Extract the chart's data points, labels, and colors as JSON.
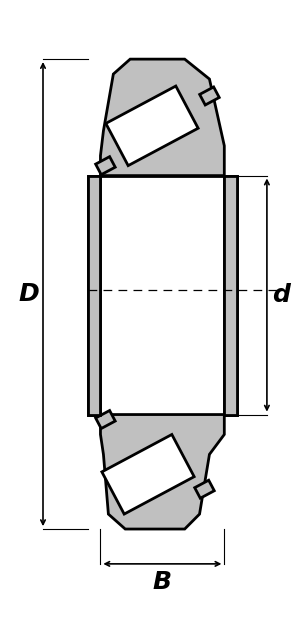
{
  "bg_color": "#ffffff",
  "line_color": "#000000",
  "fill_color": "#c0c0c0",
  "white_color": "#ffffff",
  "fig_width": 3.0,
  "fig_height": 6.25,
  "dpi": 100,
  "label_D": "D",
  "label_d": "d",
  "label_B": "B",
  "label_fontsize": 18,
  "label_fontstyle": "italic",
  "label_fontweight": "bold"
}
